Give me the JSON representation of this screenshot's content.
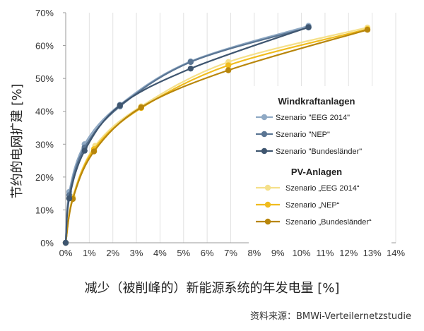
{
  "chart_data": {
    "type": "line",
    "xlabel": "减少（被削峰的）新能源系统的年发电量 [%]",
    "ylabel": "节约的电网扩建 [%]",
    "xlim": [
      0,
      14
    ],
    "ylim": [
      0,
      70
    ],
    "x_ticks": [
      0,
      1,
      2,
      3,
      4,
      5,
      6,
      7,
      8,
      9,
      10,
      11,
      12,
      13,
      14
    ],
    "y_ticks": [
      0,
      10,
      20,
      30,
      40,
      50,
      60,
      70
    ],
    "x_tick_labels": [
      "0%",
      "1%",
      "2%",
      "3%",
      "4%",
      "5%",
      "6%",
      "7%",
      "8%",
      "9%",
      "10%",
      "11%",
      "12%",
      "13%",
      "14%"
    ],
    "y_tick_labels": [
      "0%",
      "10%",
      "20%",
      "30%",
      "40%",
      "50%",
      "60%",
      "70%"
    ],
    "grid": "vertical",
    "legend": {
      "placement": "right",
      "groups": [
        {
          "title": "Windkraftanlagen",
          "entries": [
            {
              "label": "Szenario \"EEG 2014\"",
              "series": "wind_eeg"
            },
            {
              "label": "Szenario \"NEP\"",
              "series": "wind_nep"
            },
            {
              "label": "Szenario \"Bundesländer\"",
              "series": "wind_bl"
            }
          ]
        },
        {
          "title": "PV-Anlagen",
          "entries": [
            {
              "label": "Szenario „EEG 2014“",
              "series": "pv_eeg"
            },
            {
              "label": "Szenario „NEP“",
              "series": "pv_nep"
            },
            {
              "label": "Szenario „Bundesländer“",
              "series": "pv_bl"
            }
          ]
        }
      ]
    },
    "series": [
      {
        "id": "wind_eeg",
        "color": "#8fa9c4",
        "points": [
          [
            0,
            0
          ],
          [
            0.15,
            15.5
          ],
          [
            0.8,
            30
          ],
          [
            2.3,
            42
          ],
          [
            5.3,
            55.2
          ],
          [
            10.3,
            66
          ]
        ]
      },
      {
        "id": "wind_nep",
        "color": "#5a7593",
        "points": [
          [
            0,
            0
          ],
          [
            0.15,
            14.5
          ],
          [
            0.8,
            29
          ],
          [
            2.3,
            41.5
          ],
          [
            5.3,
            55
          ],
          [
            10.3,
            65.5
          ]
        ]
      },
      {
        "id": "wind_bl",
        "color": "#3f5670",
        "points": [
          [
            0,
            0
          ],
          [
            0.15,
            13.5
          ],
          [
            0.8,
            28
          ],
          [
            2.3,
            41.8
          ],
          [
            5.3,
            53
          ],
          [
            10.3,
            65.6
          ]
        ]
      },
      {
        "id": "pv_eeg",
        "color": "#f5e08a",
        "points": [
          [
            0,
            0
          ],
          [
            0.3,
            14
          ],
          [
            1.25,
            29.5
          ],
          [
            3.2,
            41.5
          ],
          [
            6.9,
            55
          ],
          [
            12.8,
            65.5
          ]
        ]
      },
      {
        "id": "pv_nep",
        "color": "#f0bc1e",
        "points": [
          [
            0,
            0
          ],
          [
            0.3,
            13.5
          ],
          [
            1.2,
            28.5
          ],
          [
            3.2,
            41
          ],
          [
            6.9,
            54
          ],
          [
            12.8,
            65
          ]
        ]
      },
      {
        "id": "pv_bl",
        "color": "#b8860b",
        "points": [
          [
            0,
            0
          ],
          [
            0.3,
            13.3
          ],
          [
            1.2,
            27.8
          ],
          [
            3.2,
            41.2
          ],
          [
            6.9,
            52.5
          ],
          [
            12.8,
            64.8
          ]
        ]
      }
    ]
  },
  "source": "资料来源：BMWi-Verteilernetzstudie"
}
